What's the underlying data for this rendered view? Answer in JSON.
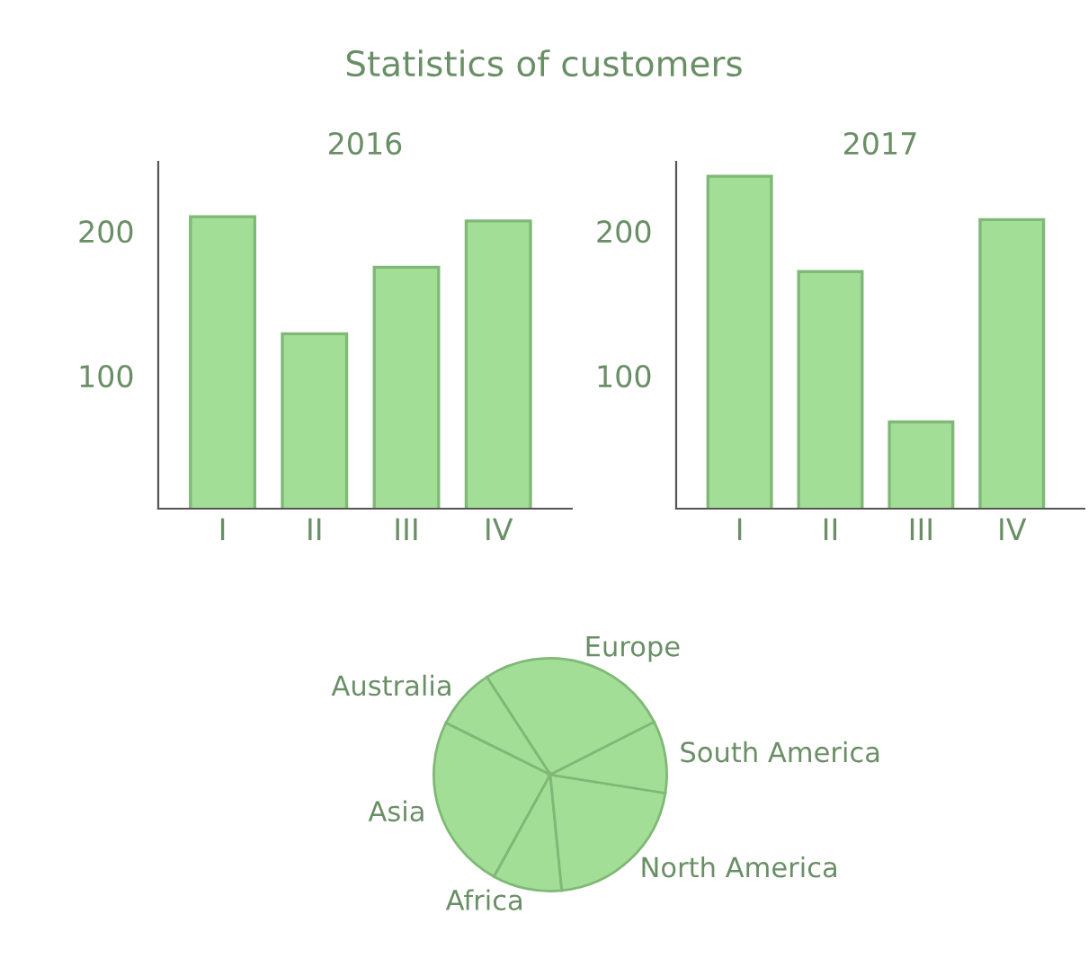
{
  "chart_data": [
    {
      "type": "other",
      "title": "Statistics of customers"
    },
    {
      "type": "bar",
      "title": "2016",
      "categories": [
        "I",
        "II",
        "III",
        "IV"
      ],
      "values": [
        210,
        129,
        175,
        207
      ],
      "color": "#a3de96",
      "ylim": [
        8,
        248
      ],
      "yticks": [
        100,
        200
      ],
      "grid": false,
      "legend": false
    },
    {
      "type": "bar",
      "title": "2017",
      "categories": [
        "I",
        "II",
        "III",
        "IV"
      ],
      "values": [
        238,
        172,
        68,
        208
      ],
      "color": "#a3de96",
      "ylim": [
        8,
        248
      ],
      "yticks": [
        100,
        200
      ],
      "grid": false,
      "legend": false
    },
    {
      "type": "pie",
      "categories": [
        "Europe",
        "Australia",
        "Asia",
        "Africa",
        "North America",
        "South America"
      ],
      "values": [
        26.7,
        8.5,
        24.3,
        9.6,
        20.9,
        10.0
      ],
      "colors": [
        "#a3de96",
        "#a3de96",
        "#a3de96",
        "#a3de96",
        "#a3de96",
        "#a3de96"
      ],
      "legend": false
    }
  ]
}
